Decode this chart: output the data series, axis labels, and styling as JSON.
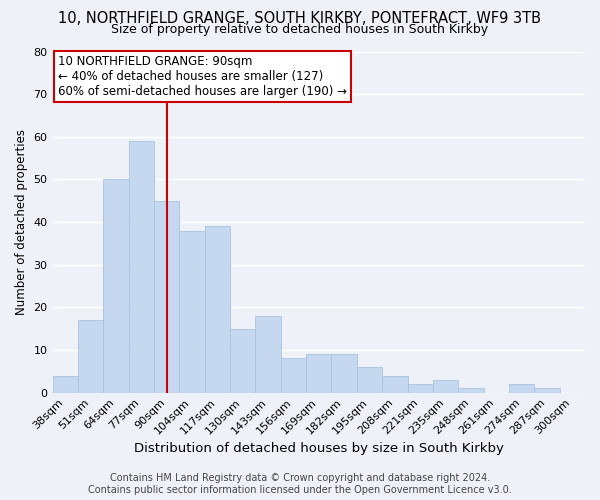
{
  "title": "10, NORTHFIELD GRANGE, SOUTH KIRKBY, PONTEFRACT, WF9 3TB",
  "subtitle": "Size of property relative to detached houses in South Kirkby",
  "xlabel": "Distribution of detached houses by size in South Kirkby",
  "ylabel": "Number of detached properties",
  "categories": [
    "38sqm",
    "51sqm",
    "64sqm",
    "77sqm",
    "90sqm",
    "104sqm",
    "117sqm",
    "130sqm",
    "143sqm",
    "156sqm",
    "169sqm",
    "182sqm",
    "195sqm",
    "208sqm",
    "221sqm",
    "235sqm",
    "248sqm",
    "261sqm",
    "274sqm",
    "287sqm",
    "300sqm"
  ],
  "values": [
    4,
    17,
    50,
    59,
    45,
    38,
    39,
    15,
    18,
    8,
    9,
    9,
    6,
    4,
    2,
    3,
    1,
    0,
    2,
    1,
    0
  ],
  "bar_color": "#c5d8f0",
  "bar_edge_color": "#a8c4e0",
  "vline_x_index": 4,
  "vline_color": "#cc0000",
  "ylim": [
    0,
    80
  ],
  "yticks": [
    0,
    10,
    20,
    30,
    40,
    50,
    60,
    70,
    80
  ],
  "annotation_line1": "10 NORTHFIELD GRANGE: 90sqm",
  "annotation_line2": "← 40% of detached houses are smaller (127)",
  "annotation_line3": "60% of semi-detached houses are larger (190) →",
  "footer_line1": "Contains HM Land Registry data © Crown copyright and database right 2024.",
  "footer_line2": "Contains public sector information licensed under the Open Government Licence v3.0.",
  "background_color": "#eef2f8",
  "grid_color": "#ffffff",
  "title_fontsize": 10.5,
  "subtitle_fontsize": 9,
  "xlabel_fontsize": 9.5,
  "ylabel_fontsize": 8.5,
  "tick_fontsize": 8,
  "annotation_fontsize": 8.5,
  "footer_fontsize": 7
}
